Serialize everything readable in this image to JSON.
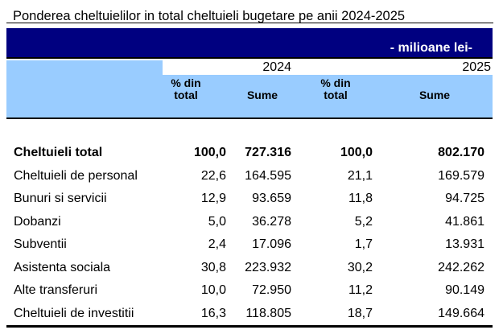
{
  "page": {
    "title": "Ponderea cheltuielilor in total cheltuieli bugetare pe anii 2024-2025"
  },
  "table": {
    "unit_label": "- milioane lei-",
    "years": {
      "y2024": "2024",
      "y2025": "2025"
    },
    "columns": [
      {
        "line1": "% din",
        "line2": "total"
      },
      {
        "line1": "",
        "line2": "Sume"
      },
      {
        "line1": "% din",
        "line2": "total"
      },
      {
        "line1": "",
        "line2": "Sume"
      }
    ],
    "rows": [
      {
        "label": "Cheltuieli total",
        "pct_2024": "100,0",
        "sume_2024": "727.316",
        "pct_2025": "100,0",
        "sume_2025": "802.170"
      },
      {
        "label": "Cheltuieli de personal",
        "pct_2024": "22,6",
        "sume_2024": "164.595",
        "pct_2025": "21,1",
        "sume_2025": "169.579"
      },
      {
        "label": "Bunuri si servicii",
        "pct_2024": "12,9",
        "sume_2024": "93.659",
        "pct_2025": "11,8",
        "sume_2025": "94.725"
      },
      {
        "label": "Dobanzi",
        "pct_2024": "5,0",
        "sume_2024": "36.278",
        "pct_2025": "5,2",
        "sume_2025": "41.861"
      },
      {
        "label": "Subventii",
        "pct_2024": "2,4",
        "sume_2024": "17.096",
        "pct_2025": "1,7",
        "sume_2025": "13.931"
      },
      {
        "label": "Asistenta sociala",
        "pct_2024": "30,8",
        "sume_2024": "223.932",
        "pct_2025": "30,2",
        "sume_2025": "242.262"
      },
      {
        "label": "Alte transferuri",
        "pct_2024": "10,0",
        "sume_2024": "72.950",
        "pct_2025": "11,2",
        "sume_2025": "90.149"
      },
      {
        "label": "Cheltuieli de investitii",
        "pct_2024": "16,3",
        "sume_2024": "118.805",
        "pct_2025": "18,7",
        "sume_2025": "149.664"
      }
    ],
    "colors": {
      "navy": "#000080",
      "light_blue": "#99CCFF"
    }
  }
}
